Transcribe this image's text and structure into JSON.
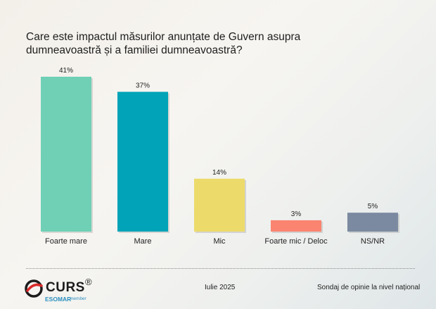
{
  "chart_data": {
    "type": "bar",
    "title": "Care este impactul măsurilor anunțate de Guvern asupra dumneavoastră și a familiei dumneavoastră?",
    "categories": [
      "Foarte mare",
      "Mare",
      "Mic",
      "Foarte mic / Deloc",
      "NS/NR"
    ],
    "values": [
      41,
      37,
      14,
      3,
      5
    ],
    "value_labels": [
      "41%",
      "37%",
      "14%",
      "3%",
      "5%"
    ],
    "colors": [
      "#6fd0b6",
      "#00a3b7",
      "#ecdb6a",
      "#fa8470",
      "#7b8aa0"
    ],
    "ylim": [
      0,
      41
    ],
    "grid": false,
    "legend": "none"
  },
  "footer": {
    "logo_text": "CURS",
    "logo_reg": "®",
    "logo_sub": "ESOMAR",
    "logo_member": "member",
    "date": "Iulie 2025",
    "note": "Sondaj de opinie la nivel național"
  }
}
